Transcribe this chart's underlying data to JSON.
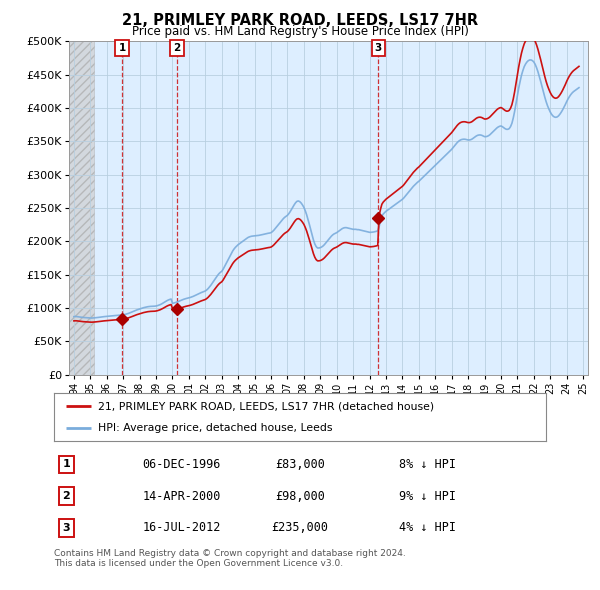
{
  "title": "21, PRIMLEY PARK ROAD, LEEDS, LS17 7HR",
  "subtitle": "Price paid vs. HM Land Registry's House Price Index (HPI)",
  "ylim": [
    0,
    500000
  ],
  "yticks": [
    0,
    50000,
    100000,
    150000,
    200000,
    250000,
    300000,
    350000,
    400000,
    450000,
    500000
  ],
  "xlim_start": 1993.7,
  "xlim_end": 2025.3,
  "hpi_color": "#7aacdc",
  "property_color": "#cc1111",
  "sale_marker_color": "#aa0000",
  "hatched_region_end": 1995.25,
  "hatch_bg_color": "#e8e8e8",
  "chart_bg_color": "#ddeeff",
  "sales": [
    {
      "date_label": "06-DEC-1996",
      "date_x": 1996.93,
      "price": 83000,
      "pct": "8% ↓ HPI",
      "num": 1
    },
    {
      "date_label": "14-APR-2000",
      "date_x": 2000.29,
      "price": 98000,
      "pct": "9% ↓ HPI",
      "num": 2
    },
    {
      "date_label": "16-JUL-2012",
      "date_x": 2012.54,
      "price": 235000,
      "pct": "4% ↓ HPI",
      "num": 3
    }
  ],
  "legend_property": "21, PRIMLEY PARK ROAD, LEEDS, LS17 7HR (detached house)",
  "legend_hpi": "HPI: Average price, detached house, Leeds",
  "footnote": "Contains HM Land Registry data © Crown copyright and database right 2024.\nThis data is licensed under the Open Government Licence v3.0.",
  "hpi_monthly_x": [
    1994.0,
    1994.083,
    1994.167,
    1994.25,
    1994.333,
    1994.417,
    1994.5,
    1994.583,
    1994.667,
    1994.75,
    1994.833,
    1994.917,
    1995.0,
    1995.083,
    1995.167,
    1995.25,
    1995.333,
    1995.417,
    1995.5,
    1995.583,
    1995.667,
    1995.75,
    1995.833,
    1995.917,
    1996.0,
    1996.083,
    1996.167,
    1996.25,
    1996.333,
    1996.417,
    1996.5,
    1996.583,
    1996.667,
    1996.75,
    1996.833,
    1996.917,
    1997.0,
    1997.083,
    1997.167,
    1997.25,
    1997.333,
    1997.417,
    1997.5,
    1997.583,
    1997.667,
    1997.75,
    1997.833,
    1997.917,
    1998.0,
    1998.083,
    1998.167,
    1998.25,
    1998.333,
    1998.417,
    1998.5,
    1998.583,
    1998.667,
    1998.75,
    1998.833,
    1998.917,
    1999.0,
    1999.083,
    1999.167,
    1999.25,
    1999.333,
    1999.417,
    1999.5,
    1999.583,
    1999.667,
    1999.75,
    1999.833,
    1999.917,
    2000.0,
    2000.083,
    2000.167,
    2000.25,
    2000.333,
    2000.417,
    2000.5,
    2000.583,
    2000.667,
    2000.75,
    2000.833,
    2000.917,
    2001.0,
    2001.083,
    2001.167,
    2001.25,
    2001.333,
    2001.417,
    2001.5,
    2001.583,
    2001.667,
    2001.75,
    2001.833,
    2001.917,
    2002.0,
    2002.083,
    2002.167,
    2002.25,
    2002.333,
    2002.417,
    2002.5,
    2002.583,
    2002.667,
    2002.75,
    2002.833,
    2002.917,
    2003.0,
    2003.083,
    2003.167,
    2003.25,
    2003.333,
    2003.417,
    2003.5,
    2003.583,
    2003.667,
    2003.75,
    2003.833,
    2003.917,
    2004.0,
    2004.083,
    2004.167,
    2004.25,
    2004.333,
    2004.417,
    2004.5,
    2004.583,
    2004.667,
    2004.75,
    2004.833,
    2004.917,
    2005.0,
    2005.083,
    2005.167,
    2005.25,
    2005.333,
    2005.417,
    2005.5,
    2005.583,
    2005.667,
    2005.75,
    2005.833,
    2005.917,
    2006.0,
    2006.083,
    2006.167,
    2006.25,
    2006.333,
    2006.417,
    2006.5,
    2006.583,
    2006.667,
    2006.75,
    2006.833,
    2006.917,
    2007.0,
    2007.083,
    2007.167,
    2007.25,
    2007.333,
    2007.417,
    2007.5,
    2007.583,
    2007.667,
    2007.75,
    2007.833,
    2007.917,
    2008.0,
    2008.083,
    2008.167,
    2008.25,
    2008.333,
    2008.417,
    2008.5,
    2008.583,
    2008.667,
    2008.75,
    2008.833,
    2008.917,
    2009.0,
    2009.083,
    2009.167,
    2009.25,
    2009.333,
    2009.417,
    2009.5,
    2009.583,
    2009.667,
    2009.75,
    2009.833,
    2009.917,
    2010.0,
    2010.083,
    2010.167,
    2010.25,
    2010.333,
    2010.417,
    2010.5,
    2010.583,
    2010.667,
    2010.75,
    2010.833,
    2010.917,
    2011.0,
    2011.083,
    2011.167,
    2011.25,
    2011.333,
    2011.417,
    2011.5,
    2011.583,
    2011.667,
    2011.75,
    2011.833,
    2011.917,
    2012.0,
    2012.083,
    2012.167,
    2012.25,
    2012.333,
    2012.417,
    2012.5,
    2012.583,
    2012.667,
    2012.75,
    2012.833,
    2012.917,
    2013.0,
    2013.083,
    2013.167,
    2013.25,
    2013.333,
    2013.417,
    2013.5,
    2013.583,
    2013.667,
    2013.75,
    2013.833,
    2013.917,
    2014.0,
    2014.083,
    2014.167,
    2014.25,
    2014.333,
    2014.417,
    2014.5,
    2014.583,
    2014.667,
    2014.75,
    2014.833,
    2014.917,
    2015.0,
    2015.083,
    2015.167,
    2015.25,
    2015.333,
    2015.417,
    2015.5,
    2015.583,
    2015.667,
    2015.75,
    2015.833,
    2015.917,
    2016.0,
    2016.083,
    2016.167,
    2016.25,
    2016.333,
    2016.417,
    2016.5,
    2016.583,
    2016.667,
    2016.75,
    2016.833,
    2016.917,
    2017.0,
    2017.083,
    2017.167,
    2017.25,
    2017.333,
    2017.417,
    2017.5,
    2017.583,
    2017.667,
    2017.75,
    2017.833,
    2017.917,
    2018.0,
    2018.083,
    2018.167,
    2018.25,
    2018.333,
    2018.417,
    2018.5,
    2018.583,
    2018.667,
    2018.75,
    2018.833,
    2018.917,
    2019.0,
    2019.083,
    2019.167,
    2019.25,
    2019.333,
    2019.417,
    2019.5,
    2019.583,
    2019.667,
    2019.75,
    2019.833,
    2019.917,
    2020.0,
    2020.083,
    2020.167,
    2020.25,
    2020.333,
    2020.417,
    2020.5,
    2020.583,
    2020.667,
    2020.75,
    2020.833,
    2020.917,
    2021.0,
    2021.083,
    2021.167,
    2021.25,
    2021.333,
    2021.417,
    2021.5,
    2021.583,
    2021.667,
    2021.75,
    2021.833,
    2021.917,
    2022.0,
    2022.083,
    2022.167,
    2022.25,
    2022.333,
    2022.417,
    2022.5,
    2022.583,
    2022.667,
    2022.75,
    2022.833,
    2022.917,
    2023.0,
    2023.083,
    2023.167,
    2023.25,
    2023.333,
    2023.417,
    2023.5,
    2023.583,
    2023.667,
    2023.75,
    2023.833,
    2023.917,
    2024.0,
    2024.083,
    2024.167,
    2024.25,
    2024.333,
    2024.417,
    2024.5,
    2024.583,
    2024.667,
    2024.75
  ],
  "hpi_monthly_y": [
    87000,
    87200,
    87100,
    86800,
    86500,
    86200,
    85900,
    85700,
    85600,
    85500,
    85300,
    85100,
    85000,
    84900,
    85000,
    85200,
    85400,
    85600,
    85900,
    86200,
    86500,
    86800,
    87000,
    87200,
    87400,
    87500,
    87700,
    87900,
    88100,
    88300,
    88500,
    88700,
    88900,
    89100,
    89300,
    89500,
    89800,
    90200,
    90700,
    91300,
    92000,
    92800,
    93600,
    94500,
    95400,
    96300,
    97100,
    97800,
    98500,
    99200,
    99900,
    100500,
    101000,
    101500,
    101900,
    102200,
    102400,
    102500,
    102600,
    102700,
    103000,
    103500,
    104200,
    105000,
    106000,
    107200,
    108500,
    109800,
    111000,
    112000,
    112800,
    113400,
    107000,
    107500,
    108000,
    108700,
    109500,
    110400,
    111300,
    112100,
    112900,
    113600,
    114200,
    114700,
    115200,
    115800,
    116500,
    117300,
    118200,
    119200,
    120200,
    121200,
    122200,
    123100,
    123900,
    124600,
    125500,
    127000,
    129000,
    131500,
    134000,
    137000,
    140000,
    143000,
    146000,
    149000,
    151500,
    153500,
    155000,
    158000,
    162000,
    166000,
    170000,
    174000,
    178000,
    182000,
    185500,
    188500,
    191000,
    193000,
    195000,
    196500,
    198000,
    199500,
    201000,
    202500,
    204000,
    205500,
    206500,
    207200,
    207700,
    208000,
    208200,
    208400,
    208600,
    208900,
    209300,
    209700,
    210200,
    210700,
    211200,
    211700,
    212100,
    212400,
    213000,
    214500,
    216500,
    219000,
    221500,
    224000,
    226500,
    229000,
    231500,
    234000,
    236000,
    237500,
    239000,
    241500,
    244500,
    248000,
    251500,
    255000,
    258000,
    260000,
    260500,
    259500,
    257500,
    254500,
    251000,
    246000,
    240000,
    233000,
    225500,
    217500,
    209500,
    202000,
    196000,
    192000,
    190000,
    190000,
    190500,
    191500,
    193000,
    195000,
    197500,
    200000,
    202500,
    205000,
    207500,
    209500,
    211000,
    212000,
    213000,
    214500,
    216000,
    217500,
    219000,
    220000,
    220500,
    220500,
    220000,
    219500,
    219000,
    218500,
    218000,
    218000,
    218000,
    217500,
    217500,
    217000,
    216500,
    216000,
    215500,
    215000,
    214500,
    214000,
    213500,
    213500,
    213700,
    214000,
    214500,
    215000,
    215800,
    222000,
    231000,
    238000,
    241000,
    243000,
    245000,
    246500,
    248000,
    249500,
    251000,
    252500,
    254000,
    255500,
    257000,
    258500,
    260000,
    261500,
    263000,
    265000,
    267500,
    270000,
    272500,
    275000,
    277500,
    280000,
    282500,
    284500,
    286500,
    288500,
    290000,
    292000,
    294000,
    296000,
    298000,
    300000,
    302000,
    304000,
    306000,
    308000,
    310000,
    312000,
    314000,
    316000,
    318000,
    320000,
    322000,
    324000,
    326000,
    328000,
    330000,
    332000,
    334000,
    336000,
    338000,
    340500,
    343000,
    345500,
    348000,
    350000,
    351500,
    352500,
    353000,
    353200,
    353000,
    352500,
    352000,
    352000,
    352500,
    353500,
    355000,
    356500,
    358000,
    359000,
    359500,
    359500,
    359000,
    358000,
    357000,
    357000,
    357500,
    358500,
    360000,
    362000,
    364000,
    366000,
    368000,
    370000,
    371500,
    372500,
    373000,
    372000,
    370500,
    369000,
    368000,
    368000,
    369000,
    372000,
    377000,
    385000,
    395000,
    407000,
    419000,
    430000,
    440000,
    449000,
    456000,
    462000,
    466000,
    469000,
    471000,
    472000,
    472000,
    471000,
    469000,
    465500,
    460500,
    454500,
    447500,
    440000,
    432000,
    424000,
    416500,
    409500,
    403500,
    398500,
    394000,
    390500,
    388000,
    386500,
    386000,
    386500,
    388000,
    390500,
    393500,
    397000,
    401000,
    405000,
    409500,
    413500,
    417000,
    420000,
    422500,
    424500,
    426000,
    427500,
    429000,
    430500
  ],
  "background_color": "#ffffff",
  "grid_color": "#b8cfe0"
}
